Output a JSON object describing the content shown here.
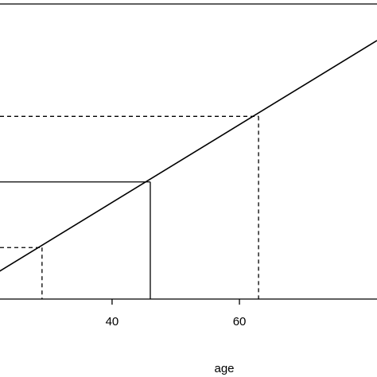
{
  "chart_data": {
    "type": "line",
    "title": "",
    "xlabel": "age",
    "ylabel": "",
    "xlim": [
      22.4,
      81.6
    ],
    "ylim": [
      0,
      3.15
    ],
    "xticks": [
      40,
      60
    ],
    "series": [
      {
        "x": [
          20,
          81.6
        ],
        "y": [
          0.2,
          2.76
        ]
      }
    ],
    "reference_lines": [
      {
        "x": 29,
        "y": 0.55,
        "style": "dashed"
      },
      {
        "x": 46,
        "y": 1.25,
        "style": "solid"
      },
      {
        "x": 63,
        "y": 1.95,
        "style": "dashed"
      }
    ],
    "grid": false,
    "legend": "none"
  }
}
